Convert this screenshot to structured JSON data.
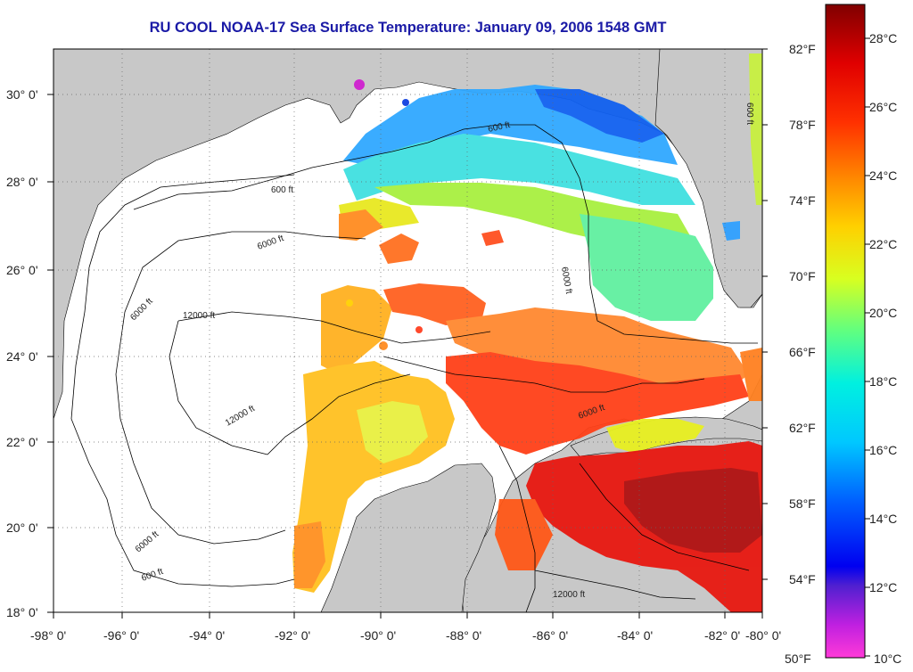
{
  "title": "RU COOL  NOAA-17  Sea Surface Temperature:  January 09, 2006 1548 GMT",
  "lat_labels": [
    "30° 0'",
    "28° 0'",
    "26° 0'",
    "24° 0'",
    "22° 0'",
    "20° 0'",
    "18° 0'"
  ],
  "lon_labels": [
    "-98° 0'",
    "-96° 0'",
    "-94° 0'",
    "-92° 0'",
    "-90° 0'",
    "-88° 0'",
    "-86° 0'",
    "-84° 0'",
    "-82° 0'",
    "-80° 0'"
  ],
  "colorbar": {
    "fahrenheit": [
      "82°F",
      "78°F",
      "74°F",
      "70°F",
      "66°F",
      "62°F",
      "58°F",
      "54°F",
      "50°F"
    ],
    "celsius": [
      "28°C",
      "26°C",
      "24°C",
      "22°C",
      "20°C",
      "18°C",
      "16°C",
      "14°C",
      "12°C",
      "10°C"
    ]
  },
  "contour_labels": [
    "600 ft",
    "6000 ft",
    "12000 ft"
  ],
  "colors": {
    "land": "#c8c8c8",
    "no_data": "#ffffff",
    "title": "#1a1aa6"
  }
}
